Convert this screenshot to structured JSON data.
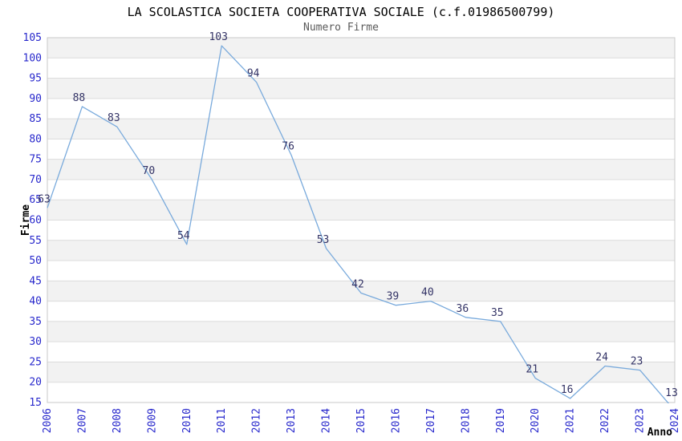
{
  "chart_data": {
    "type": "line",
    "title": "LA SCOLASTICA SOCIETA COOPERATIVA SOCIALE (c.f.01986500799)",
    "subtitle": "Numero Firme",
    "xlabel": "Anno",
    "ylabel": "Firme",
    "categories": [
      "2006",
      "2007",
      "2008",
      "2009",
      "2010",
      "2011",
      "2012",
      "2013",
      "2014",
      "2015",
      "2016",
      "2017",
      "2018",
      "2019",
      "2020",
      "2021",
      "2022",
      "2023",
      "2024"
    ],
    "series": [
      {
        "name": "Numero Firme",
        "values": [
          63,
          88,
          83,
          70,
          54,
          103,
          94,
          76,
          53,
          42,
          39,
          40,
          36,
          35,
          21,
          16,
          24,
          23,
          13
        ]
      }
    ],
    "ylim": [
      15,
      105
    ],
    "ytick_step": 5,
    "yticks": [
      15,
      20,
      25,
      30,
      35,
      40,
      45,
      50,
      55,
      60,
      65,
      70,
      75,
      80,
      85,
      90,
      95,
      100,
      105
    ],
    "grid": true,
    "legend": "none",
    "colors": {
      "line": "#79aadc",
      "point_label": "#333366",
      "tick_label": "#2828cc",
      "axis_title": "#000000",
      "band": "#f2f2f2",
      "gridline": "#dcdcdc",
      "plot_border": "#c8c8c8",
      "title": "#000000",
      "subtitle": "#5a5a5a"
    }
  }
}
